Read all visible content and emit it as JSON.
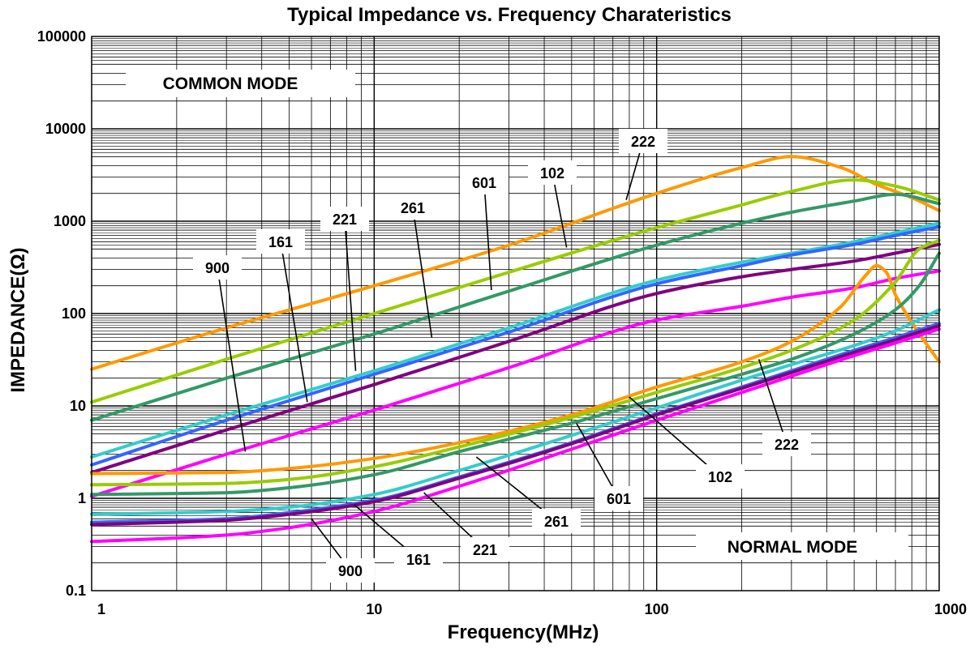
{
  "chart_data": {
    "type": "line",
    "title": "Typical Impedance vs. Frequency Charateristics",
    "xlabel": "Frequency(MHz)",
    "ylabel": "IMPEDANCE(Ω)",
    "x_scale": "log",
    "y_scale": "log",
    "xlim": [
      1,
      1000
    ],
    "ylim": [
      0.1,
      100000
    ],
    "grid": true,
    "x_ticks": [
      "1",
      "10",
      "100",
      "1000"
    ],
    "y_ticks": [
      "0.1",
      "1",
      "10",
      "100",
      "1000",
      "10000",
      "100000"
    ],
    "annotations": {
      "common_mode": "COMMON MODE",
      "normal_mode": "NORMAL MODE"
    },
    "series": [
      {
        "name": "222",
        "mode": "common",
        "color": "#FF9900",
        "points": [
          [
            1,
            25
          ],
          [
            3,
            70
          ],
          [
            10,
            200
          ],
          [
            30,
            550
          ],
          [
            100,
            2000
          ],
          [
            200,
            3800
          ],
          [
            300,
            5000
          ],
          [
            450,
            3800
          ],
          [
            600,
            2500
          ],
          [
            800,
            1800
          ],
          [
            1000,
            1300
          ]
        ]
      },
      {
        "name": "102",
        "mode": "common",
        "color": "#99CC00",
        "points": [
          [
            1,
            11
          ],
          [
            3,
            32
          ],
          [
            10,
            100
          ],
          [
            30,
            280
          ],
          [
            100,
            850
          ],
          [
            200,
            1500
          ],
          [
            300,
            2100
          ],
          [
            500,
            2800
          ],
          [
            700,
            2400
          ],
          [
            1000,
            1700
          ]
        ]
      },
      {
        "name": "601",
        "mode": "common",
        "color": "#339966",
        "points": [
          [
            1,
            7
          ],
          [
            3,
            20
          ],
          [
            10,
            60
          ],
          [
            30,
            175
          ],
          [
            100,
            550
          ],
          [
            200,
            950
          ],
          [
            300,
            1250
          ],
          [
            500,
            1650
          ],
          [
            700,
            1950
          ],
          [
            1000,
            1550
          ]
        ]
      },
      {
        "name": "261",
        "mode": "common",
        "color": "#33CCCC",
        "points": [
          [
            1,
            2.8
          ],
          [
            3,
            8
          ],
          [
            10,
            24
          ],
          [
            30,
            70
          ],
          [
            100,
            230
          ],
          [
            200,
            360
          ],
          [
            300,
            450
          ],
          [
            500,
            600
          ],
          [
            700,
            750
          ],
          [
            1000,
            950
          ]
        ]
      },
      {
        "name": "221",
        "mode": "common",
        "color": "#3366FF",
        "points": [
          [
            1,
            2.3
          ],
          [
            3,
            7
          ],
          [
            10,
            22
          ],
          [
            30,
            63
          ],
          [
            100,
            210
          ],
          [
            200,
            330
          ],
          [
            300,
            430
          ],
          [
            500,
            560
          ],
          [
            700,
            700
          ],
          [
            1000,
            870
          ]
        ]
      },
      {
        "name": "161",
        "mode": "common",
        "color": "#800080",
        "points": [
          [
            1,
            1.9
          ],
          [
            3,
            5.5
          ],
          [
            10,
            17
          ],
          [
            30,
            50
          ],
          [
            100,
            165
          ],
          [
            200,
            250
          ],
          [
            300,
            300
          ],
          [
            500,
            370
          ],
          [
            700,
            450
          ],
          [
            1000,
            560
          ]
        ]
      },
      {
        "name": "900",
        "mode": "common",
        "color": "#FF00FF",
        "points": [
          [
            1,
            1.05
          ],
          [
            3,
            3
          ],
          [
            10,
            9
          ],
          [
            30,
            26
          ],
          [
            100,
            85
          ],
          [
            200,
            120
          ],
          [
            300,
            150
          ],
          [
            500,
            190
          ],
          [
            700,
            240
          ],
          [
            1000,
            290
          ]
        ]
      },
      {
        "name": "222",
        "mode": "normal",
        "color": "#FF9900",
        "points": [
          [
            1,
            1.85
          ],
          [
            3,
            1.9
          ],
          [
            5,
            2.1
          ],
          [
            10,
            2.7
          ],
          [
            20,
            4
          ],
          [
            50,
            8
          ],
          [
            100,
            16
          ],
          [
            200,
            30
          ],
          [
            300,
            50
          ],
          [
            450,
            120
          ],
          [
            550,
            260
          ],
          [
            600,
            330
          ],
          [
            650,
            280
          ],
          [
            700,
            160
          ],
          [
            800,
            80
          ],
          [
            1000,
            30
          ]
        ]
      },
      {
        "name": "102",
        "mode": "normal",
        "color": "#99CC00",
        "points": [
          [
            1,
            1.4
          ],
          [
            3,
            1.45
          ],
          [
            5,
            1.6
          ],
          [
            10,
            2.2
          ],
          [
            20,
            3.6
          ],
          [
            50,
            7.5
          ],
          [
            100,
            14
          ],
          [
            200,
            26
          ],
          [
            300,
            40
          ],
          [
            500,
            85
          ],
          [
            700,
            220
          ],
          [
            850,
            500
          ],
          [
            1000,
            620
          ]
        ]
      },
      {
        "name": "601",
        "mode": "normal",
        "color": "#339966",
        "points": [
          [
            1,
            1.1
          ],
          [
            3,
            1.15
          ],
          [
            5,
            1.3
          ],
          [
            10,
            1.8
          ],
          [
            20,
            3.2
          ],
          [
            50,
            6.5
          ],
          [
            100,
            12
          ],
          [
            200,
            22
          ],
          [
            300,
            32
          ],
          [
            500,
            60
          ],
          [
            700,
            110
          ],
          [
            850,
            200
          ],
          [
            1000,
            450
          ]
        ]
      },
      {
        "name": "261",
        "mode": "normal",
        "color": "#33CCCC",
        "points": [
          [
            1,
            0.67
          ],
          [
            3,
            0.72
          ],
          [
            5,
            0.8
          ],
          [
            10,
            1.1
          ],
          [
            20,
            2
          ],
          [
            50,
            4.8
          ],
          [
            100,
            9.5
          ],
          [
            200,
            19
          ],
          [
            300,
            28
          ],
          [
            500,
            45
          ],
          [
            700,
            65
          ],
          [
            1000,
            110
          ]
        ]
      },
      {
        "name": "221",
        "mode": "normal",
        "color": "#3366FF",
        "points": [
          [
            1,
            0.55
          ],
          [
            3,
            0.6
          ],
          [
            5,
            0.7
          ],
          [
            10,
            0.95
          ],
          [
            20,
            1.7
          ],
          [
            50,
            4
          ],
          [
            100,
            8.2
          ],
          [
            200,
            16
          ],
          [
            300,
            24
          ],
          [
            500,
            40
          ],
          [
            700,
            55
          ],
          [
            1000,
            78
          ]
        ]
      },
      {
        "name": "161",
        "mode": "normal",
        "color": "#800080",
        "points": [
          [
            1,
            0.52
          ],
          [
            3,
            0.58
          ],
          [
            5,
            0.67
          ],
          [
            10,
            0.92
          ],
          [
            20,
            1.65
          ],
          [
            50,
            3.9
          ],
          [
            100,
            8
          ],
          [
            200,
            15.5
          ],
          [
            300,
            23
          ],
          [
            500,
            38
          ],
          [
            700,
            52
          ],
          [
            1000,
            74
          ]
        ]
      },
      {
        "name": "900",
        "mode": "normal",
        "color": "#FF00FF",
        "points": [
          [
            1,
            0.34
          ],
          [
            3,
            0.4
          ],
          [
            5,
            0.48
          ],
          [
            10,
            0.72
          ],
          [
            20,
            1.35
          ],
          [
            50,
            3.4
          ],
          [
            100,
            7
          ],
          [
            200,
            14
          ],
          [
            300,
            21
          ],
          [
            500,
            35
          ],
          [
            700,
            48
          ],
          [
            1000,
            68
          ]
        ]
      }
    ]
  }
}
